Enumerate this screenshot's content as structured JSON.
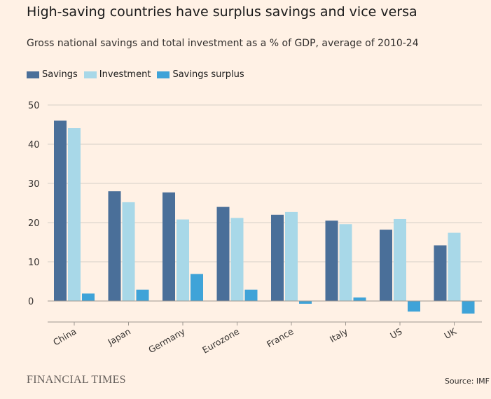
{
  "title": "High-saving countries have surplus savings and vice versa",
  "subtitle": "Gross national savings and total investment as a % of GDP, average of 2010-24",
  "source": "Source: IMF",
  "logo": "FINANCIAL TIMES",
  "colors": {
    "background": "#FFF1E5",
    "savings": "#4A6F99",
    "investment": "#A8D8E8",
    "surplus": "#3FA3D8",
    "grid": "#D6CFC7"
  },
  "chart_data": {
    "type": "bar",
    "title": "High-saving countries have surplus savings and vice versa",
    "subtitle": "Gross national savings and total investment as a % of GDP, average of 2010-24",
    "categories": [
      "China",
      "Japan",
      "Germany",
      "Eurozone",
      "France",
      "Italy",
      "US",
      "UK"
    ],
    "series": [
      {
        "name": "Savings",
        "values": [
          46,
          28,
          27.7,
          24,
          22,
          20.5,
          18.2,
          14.2
        ]
      },
      {
        "name": "Investment",
        "values": [
          44.1,
          25.2,
          20.8,
          21.2,
          22.7,
          19.6,
          20.9,
          17.4
        ]
      },
      {
        "name": "Savings surplus",
        "values": [
          1.9,
          2.9,
          6.9,
          2.9,
          -0.7,
          0.9,
          -2.7,
          -3.2
        ]
      }
    ],
    "yticks": [
      "0",
      "10",
      "20",
      "30",
      "40",
      "50"
    ],
    "ylim": [
      -5,
      50
    ],
    "grid": true,
    "legend": "top-left"
  }
}
